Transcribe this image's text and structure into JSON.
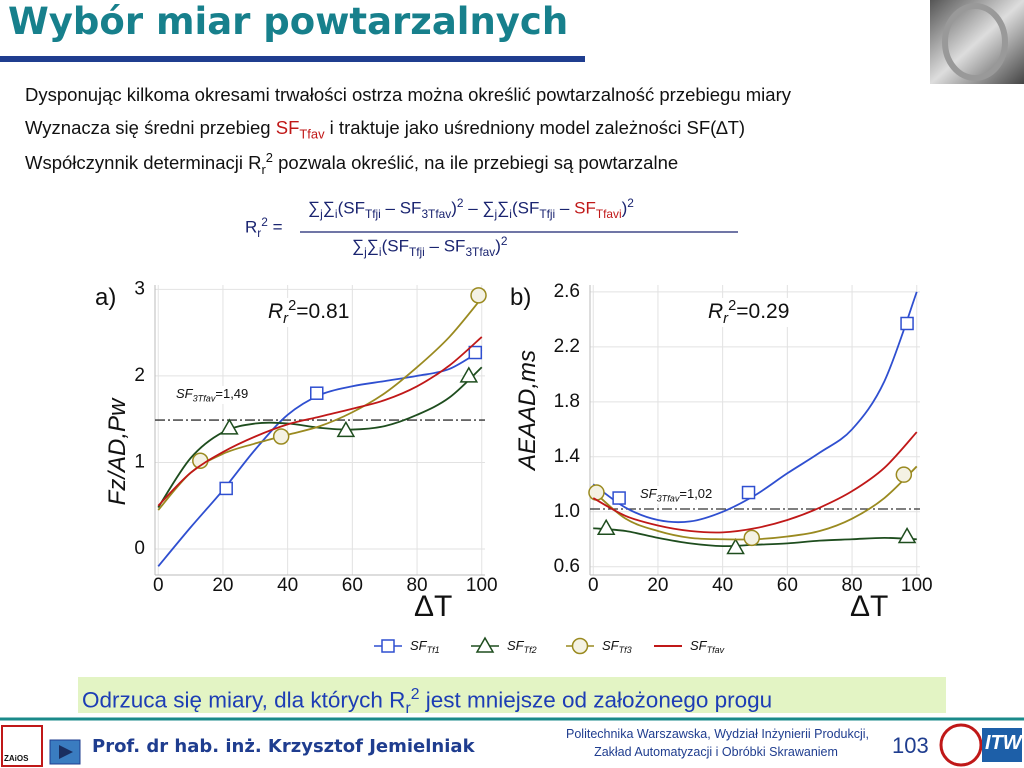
{
  "header": {
    "title": "Wybór miar powtarzalnych"
  },
  "bullets": [
    [
      "Dysponując kilkoma okresami trwałości ostrza można określić powtarzalność przebiegu miary"
    ],
    [
      "Wyznacza się średni przebieg ",
      "SF",
      "Tfav",
      " i traktuje jako uśredniony model zależności SF(∆T)"
    ],
    [
      "Współczynnik determinacji R",
      "r",
      "2",
      " pozwala określić, na ile przebiegi są powtarzalne"
    ]
  ],
  "formula": {
    "lhs": [
      "R",
      "r",
      "2",
      " ="
    ],
    "numerator": [
      "∑",
      "j",
      "∑",
      "i",
      "(SF",
      "Tfji",
      " – SF",
      "3Tfav",
      ")",
      "2",
      " – ",
      "∑",
      "j",
      "∑",
      "i",
      "(SF",
      "Tfji",
      " – ",
      "SF",
      "Tfavi",
      ")",
      "2"
    ],
    "denominator": [
      "∑",
      "j",
      "∑",
      "i",
      "(SF",
      "Tfji",
      " – SF",
      "3Tfav",
      ")",
      "2"
    ]
  },
  "chart_data": [
    {
      "type": "line",
      "panel": "a)",
      "ylabel": "Fz/AD,Pw",
      "xlabel": "ΔT",
      "xlim": [
        -1,
        101
      ],
      "ylim": [
        -0.3,
        3.05
      ],
      "xticks": [
        0,
        20,
        40,
        60,
        80,
        100
      ],
      "yticks": [
        0,
        1,
        2,
        3
      ],
      "grid": true,
      "annotation": [
        "R",
        "r",
        "2",
        "=0.81"
      ],
      "reference": {
        "value": 1.49,
        "label": [
          "SF",
          "3Tfav",
          "=1,49"
        ]
      },
      "series": [
        {
          "name": "SF",
          "name_sub": "Tf1",
          "color": "#2f4fd0",
          "marker": "square",
          "x": [
            0,
            10,
            20,
            30,
            40,
            50,
            60,
            70,
            80,
            90,
            100
          ],
          "values": [
            -0.2,
            0.25,
            0.68,
            1.15,
            1.55,
            1.78,
            1.88,
            1.94,
            2.0,
            2.08,
            2.3
          ],
          "points": {
            "x": [
              21,
              49,
              98
            ],
            "values": [
              0.7,
              1.8,
              2.27
            ]
          }
        },
        {
          "name": "SF",
          "name_sub": "Tf2",
          "color": "#1e4d1e",
          "marker": "triangle",
          "x": [
            0,
            10,
            20,
            30,
            40,
            50,
            60,
            70,
            80,
            90,
            100
          ],
          "values": [
            0.48,
            1.05,
            1.35,
            1.45,
            1.45,
            1.4,
            1.38,
            1.42,
            1.55,
            1.75,
            2.1
          ],
          "points": {
            "x": [
              22,
              58,
              96
            ],
            "values": [
              1.4,
              1.37,
              2.0
            ]
          }
        },
        {
          "name": "SF",
          "name_sub": "Tf3",
          "color": "#9a8a20",
          "marker": "circle",
          "x": [
            0,
            10,
            20,
            30,
            40,
            50,
            60,
            70,
            80,
            90,
            100
          ],
          "values": [
            0.45,
            0.88,
            1.1,
            1.22,
            1.32,
            1.42,
            1.58,
            1.8,
            2.1,
            2.45,
            2.9
          ],
          "points": {
            "x": [
              13,
              38,
              99
            ],
            "values": [
              1.02,
              1.3,
              2.93
            ]
          }
        },
        {
          "name": "SF",
          "name_sub": "Tfav",
          "color": "#c01818",
          "marker": "none",
          "x": [
            0,
            10,
            20,
            30,
            40,
            50,
            60,
            70,
            80,
            90,
            100
          ],
          "values": [
            0.5,
            0.88,
            1.12,
            1.3,
            1.44,
            1.53,
            1.62,
            1.72,
            1.88,
            2.12,
            2.45
          ]
        }
      ]
    },
    {
      "type": "line",
      "panel": "b)",
      "ylabel": "AEAAD,ms",
      "xlabel": "ΔT",
      "xlim": [
        -1,
        101
      ],
      "ylim": [
        0.54,
        2.65
      ],
      "xticks": [
        0,
        20,
        40,
        60,
        80,
        100
      ],
      "yticks": [
        0.6,
        {
          "value": 1,
          "label": "1.0"
        },
        1.4,
        1.8,
        2.2,
        2.6
      ],
      "grid": true,
      "annotation": [
        "R",
        "r",
        "2",
        "=0.29"
      ],
      "reference": {
        "value": 1.02,
        "label": [
          "SF",
          "3Tfav",
          "=1,02"
        ]
      },
      "series": [
        {
          "name": "SF",
          "name_sub": "Tf1",
          "color": "#2f4fd0",
          "marker": "square",
          "x": [
            0,
            10,
            20,
            30,
            40,
            50,
            60,
            70,
            80,
            90,
            100
          ],
          "values": [
            1.2,
            1.03,
            0.94,
            0.93,
            1.0,
            1.12,
            1.28,
            1.43,
            1.6,
            1.95,
            2.6
          ],
          "points": {
            "x": [
              8,
              48,
              97
            ],
            "values": [
              1.1,
              1.14,
              2.37
            ]
          }
        },
        {
          "name": "SF",
          "name_sub": "Tf2",
          "color": "#1e4d1e",
          "marker": "triangle",
          "x": [
            0,
            10,
            20,
            30,
            40,
            50,
            60,
            70,
            80,
            90,
            100
          ],
          "values": [
            0.88,
            0.86,
            0.81,
            0.77,
            0.75,
            0.76,
            0.77,
            0.79,
            0.8,
            0.81,
            0.8
          ],
          "points": {
            "x": [
              4,
              44,
              97
            ],
            "values": [
              0.88,
              0.74,
              0.82
            ]
          }
        },
        {
          "name": "SF",
          "name_sub": "Tf3",
          "color": "#9a8a20",
          "marker": "circle",
          "x": [
            0,
            10,
            20,
            30,
            40,
            50,
            60,
            70,
            80,
            90,
            100
          ],
          "values": [
            1.15,
            0.95,
            0.86,
            0.81,
            0.8,
            0.8,
            0.82,
            0.86,
            0.95,
            1.1,
            1.33
          ],
          "points": {
            "x": [
              1,
              49,
              96
            ],
            "values": [
              1.14,
              0.81,
              1.27
            ]
          }
        },
        {
          "name": "SF",
          "name_sub": "Tfav",
          "color": "#c01818",
          "marker": "none",
          "x": [
            0,
            10,
            20,
            30,
            40,
            50,
            60,
            70,
            80,
            90,
            100
          ],
          "values": [
            1.1,
            0.97,
            0.9,
            0.86,
            0.85,
            0.88,
            0.94,
            1.03,
            1.15,
            1.32,
            1.58
          ]
        }
      ]
    }
  ],
  "conclusion": [
    "Odrzuca się miary, dla których R",
    "r",
    "2",
    " jest mniejsze od założonego progu"
  ],
  "footer": {
    "author": "Prof. dr hab. inż. Krzysztof Jemielniak",
    "institution": [
      "Politechnika Warszawska, Wydział Inżynierii Produkcji,",
      "Zakład Automatyzacji i Obróbki Skrawaniem"
    ],
    "page": "103",
    "logo_left": "ZAiOS",
    "logo_right": "ITW"
  }
}
